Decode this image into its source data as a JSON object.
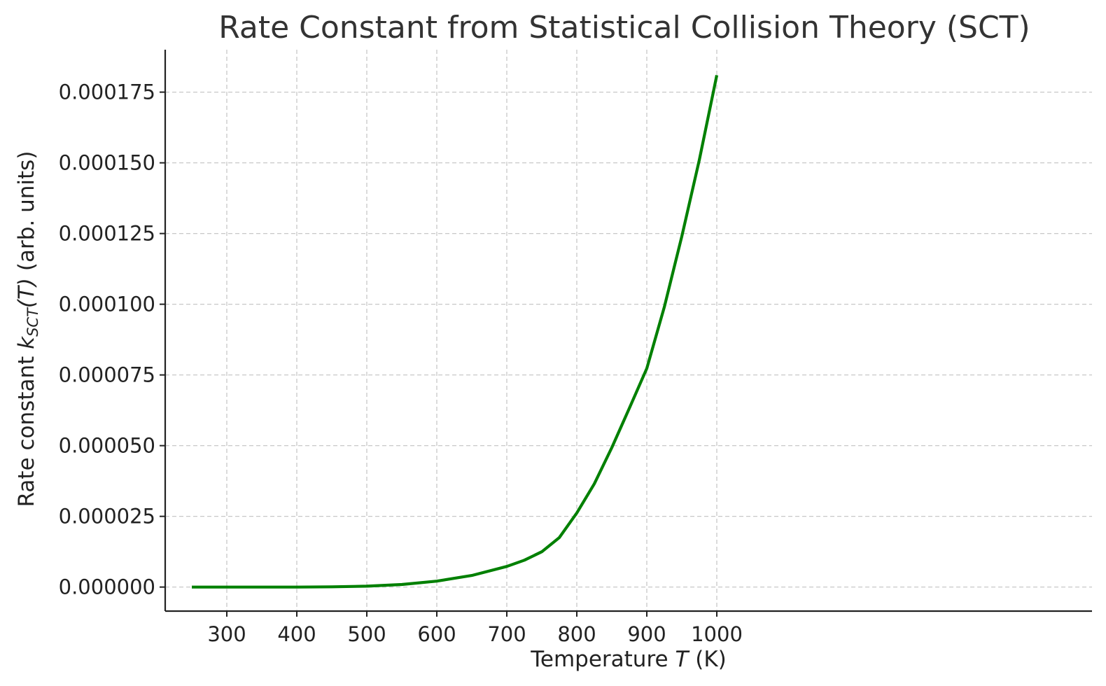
{
  "chart_data": {
    "type": "line",
    "title": "Rate Constant from Statistical Collision Theory (SCT)",
    "xlabel": {
      "pre": "Temperature ",
      "italic": "T",
      "post": " (K)"
    },
    "ylabel": {
      "pre": "Rate constant ",
      "italic": "k",
      "sub": "SCT",
      "post_italic": "(T)",
      "post": " (arb. units)"
    },
    "xlim": [
      212,
      1536
    ],
    "ylim": [
      -8.5e-06,
      0.00019
    ],
    "xticks": [
      300,
      400,
      500,
      600,
      700,
      800,
      900,
      1000
    ],
    "xtick_labels": [
      "300",
      "400",
      "500",
      "600",
      "700",
      "800",
      "900",
      "1000"
    ],
    "yticks": [
      0,
      2.5e-05,
      5e-05,
      7.5e-05,
      0.0001,
      0.000125,
      0.00015,
      0.000175
    ],
    "ytick_labels": [
      "0.000000",
      "0.000025",
      "0.000050",
      "0.000075",
      "0.000100",
      "0.000125",
      "0.000150",
      "0.000175"
    ],
    "grid": true,
    "series": [
      {
        "color": "#008000",
        "x": [
          250,
          300,
          350,
          400,
          450,
          500,
          550,
          600,
          650,
          700,
          725,
          750,
          775,
          800,
          825,
          850,
          875,
          900,
          925,
          950,
          975,
          1000
        ],
        "y": [
          0,
          0,
          0,
          0,
          1e-07,
          3e-07,
          9e-07,
          2.1e-06,
          4.1e-06,
          7.3e-06,
          9.5e-06,
          1.25e-05,
          1.75e-05,
          2.62e-05,
          3.65e-05,
          4.93e-05,
          6.32e-05,
          7.73e-05,
          9.9e-05,
          0.000124,
          0.000151,
          0.000181
        ]
      }
    ]
  }
}
